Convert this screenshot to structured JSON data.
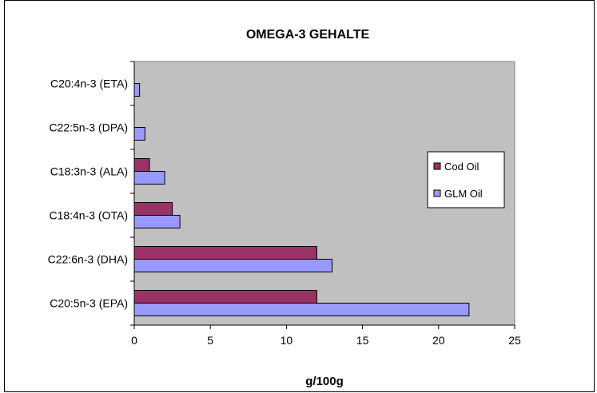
{
  "chart_data": {
    "type": "bar",
    "orientation": "horizontal",
    "title": "OMEGA-3 GEHALTE",
    "xlabel": "g/100g",
    "ylabel": "",
    "xlim": [
      0,
      25
    ],
    "x_ticks": [
      "0",
      "5",
      "10",
      "15",
      "20",
      "25"
    ],
    "categories": [
      "C20:4n-3 (ETA)",
      "C22:5n-3 (DPA)",
      "C18:3n-3 (ALA)",
      "C18:4n-3 (OTA)",
      "C22:6n-3 (DHA)",
      "C20:5n-3 (EPA)"
    ],
    "series": [
      {
        "name": "Cod Oil",
        "color": "#993366",
        "values": [
          0,
          0,
          1,
          2.5,
          12,
          12
        ]
      },
      {
        "name": "GLM Oil",
        "color": "#9999FF",
        "values": [
          0.35,
          0.7,
          2,
          3,
          13,
          22
        ]
      }
    ],
    "plot_background": "#C0C0C0",
    "grid": false,
    "legend_position": "right"
  }
}
